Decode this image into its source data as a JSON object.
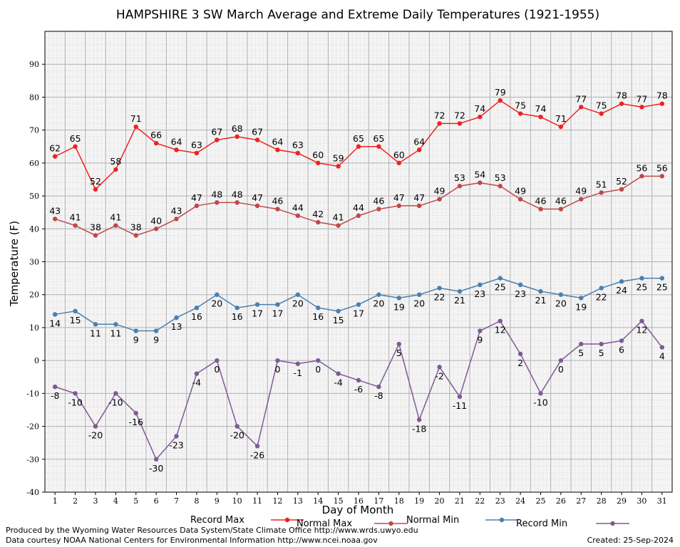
{
  "chart_data": {
    "type": "line",
    "title": "HAMPSHIRE 3 SW March Average and Extreme Daily Temperatures (1921-1955)",
    "xlabel": "Day of Month",
    "ylabel": "Temperature (F)",
    "ylim": [
      -40,
      100
    ],
    "yticks": [
      -40,
      -30,
      -20,
      -10,
      0,
      10,
      20,
      30,
      40,
      50,
      60,
      70,
      80,
      90
    ],
    "x": [
      1,
      2,
      3,
      4,
      5,
      6,
      7,
      8,
      9,
      10,
      11,
      12,
      13,
      14,
      15,
      16,
      17,
      18,
      19,
      20,
      21,
      22,
      23,
      24,
      25,
      26,
      27,
      28,
      29,
      30,
      31
    ],
    "grid": true,
    "legend_position": "bottom",
    "series": [
      {
        "name": "Record Max",
        "color": "#ee2222",
        "label_position": "above",
        "values": [
          62,
          65,
          52,
          58,
          71,
          66,
          64,
          63,
          67,
          68,
          67,
          64,
          63,
          60,
          59,
          65,
          65,
          60,
          64,
          72,
          72,
          74,
          79,
          75,
          74,
          71,
          77,
          75,
          78,
          77,
          78
        ]
      },
      {
        "name": "Normal Max",
        "color": "#c04848",
        "label_position": "above",
        "values": [
          43,
          41,
          38,
          41,
          38,
          40,
          43,
          47,
          48,
          48,
          47,
          46,
          44,
          42,
          41,
          44,
          46,
          47,
          47,
          49,
          53,
          54,
          53,
          49,
          46,
          46,
          49,
          51,
          52,
          56,
          56
        ]
      },
      {
        "name": "Normal Min",
        "color": "#4a7fb0",
        "label_position": "below",
        "values": [
          14,
          15,
          11,
          11,
          9,
          9,
          13,
          16,
          20,
          16,
          17,
          17,
          20,
          16,
          15,
          17,
          20,
          19,
          20,
          22,
          21,
          23,
          25,
          23,
          21,
          20,
          19,
          22,
          24,
          25,
          25
        ]
      },
      {
        "name": "Record Min",
        "color": "#7f5a96",
        "label_position": "below",
        "values": [
          -8,
          -10,
          -20,
          -10,
          -16,
          -30,
          -23,
          -4,
          0,
          -20,
          -26,
          0,
          -1,
          0,
          -4,
          -6,
          -8,
          5,
          -18,
          -2,
          -11,
          9,
          12,
          2,
          -10,
          0,
          5,
          5,
          6,
          12,
          4
        ]
      }
    ]
  },
  "footer": {
    "produced_by": "Produced by the Wyoming Water Resources Data System/State Climate Office http://www.wrds.uwyo.edu",
    "data_courtesy": "Data courtesy NOAA National Centers for Environmental Information http://www.ncei.noaa.gov",
    "created": "Created:  25-Sep-2024"
  }
}
